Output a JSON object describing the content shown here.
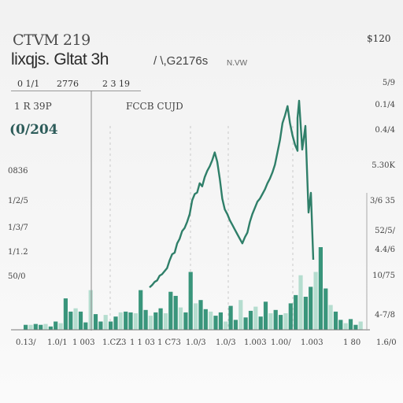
{
  "header": {
    "title": "CTVM 219",
    "subtitle": "lixqjs. Gltat 3h",
    "subtitle2": "/ \\,G2176s",
    "unit": "N.VW",
    "right_label": "$120"
  },
  "stats_row": [
    "0 1/1",
    "2776",
    "2 3 19"
  ],
  "sub_headers": [
    "1 R 39P",
    "FCCB CUJD"
  ],
  "right_top_value": "0.1/4",
  "headline_value": "(0/204",
  "left_axis_labels": [
    "0836",
    "1/2/5",
    "1/3/7",
    "1/1.2",
    "50/0"
  ],
  "right_axis_labels": [
    "5/9",
    "0.4/4",
    "5.30K",
    "3/6 35",
    "52/5/",
    "4.4/6",
    "10/75",
    "4-7/8"
  ],
  "x_tick_labels": [
    "0.13/",
    "1.0/1",
    "1 003",
    "1.CZ3",
    "1 1 03",
    "1 C73",
    "1.0/3",
    "1.0/3",
    "1.003",
    "1.00/",
    "1.003",
    "1 80",
    "1.6/0"
  ],
  "chart_data": {
    "type": "bar+line",
    "bars": {
      "values": [
        6,
        6,
        7,
        6,
        7,
        4,
        10,
        8,
        38,
        22,
        26,
        22,
        9,
        48,
        19,
        10,
        18,
        10,
        16,
        21,
        22,
        21,
        20,
        48,
        24,
        17,
        21,
        26,
        20,
        46,
        41,
        27,
        21,
        70,
        32,
        36,
        25,
        22,
        17,
        21,
        10,
        29,
        12,
        36,
        15,
        23,
        28,
        16,
        34,
        20,
        24,
        18,
        20,
        32,
        42,
        66,
        40,
        52,
        70,
        100,
        50,
        30,
        22,
        12,
        8,
        13,
        6,
        10
      ],
      "color": "#2e8f74",
      "light_color": "#a9d8c8"
    },
    "line": {
      "values": [
        55,
        58,
        62,
        64,
        70,
        72,
        76,
        80,
        90,
        98,
        100,
        112,
        118,
        128,
        132,
        140,
        150,
        168,
        176,
        178,
        190,
        186,
        198,
        206,
        212,
        220,
        230,
        218,
        196,
        170,
        156,
        150,
        142,
        136,
        130,
        124,
        118,
        112,
        120,
        126,
        140,
        150,
        158,
        166,
        170,
        176,
        182,
        190,
        196,
        204,
        214,
        230,
        246,
        268,
        278,
        290,
        268,
        252,
        240,
        232
      ],
      "color": "#2f7f69"
    },
    "grid": true
  },
  "colors": {
    "accent": "#2e8f74",
    "line": "#2f7f69",
    "text": "#333333"
  }
}
